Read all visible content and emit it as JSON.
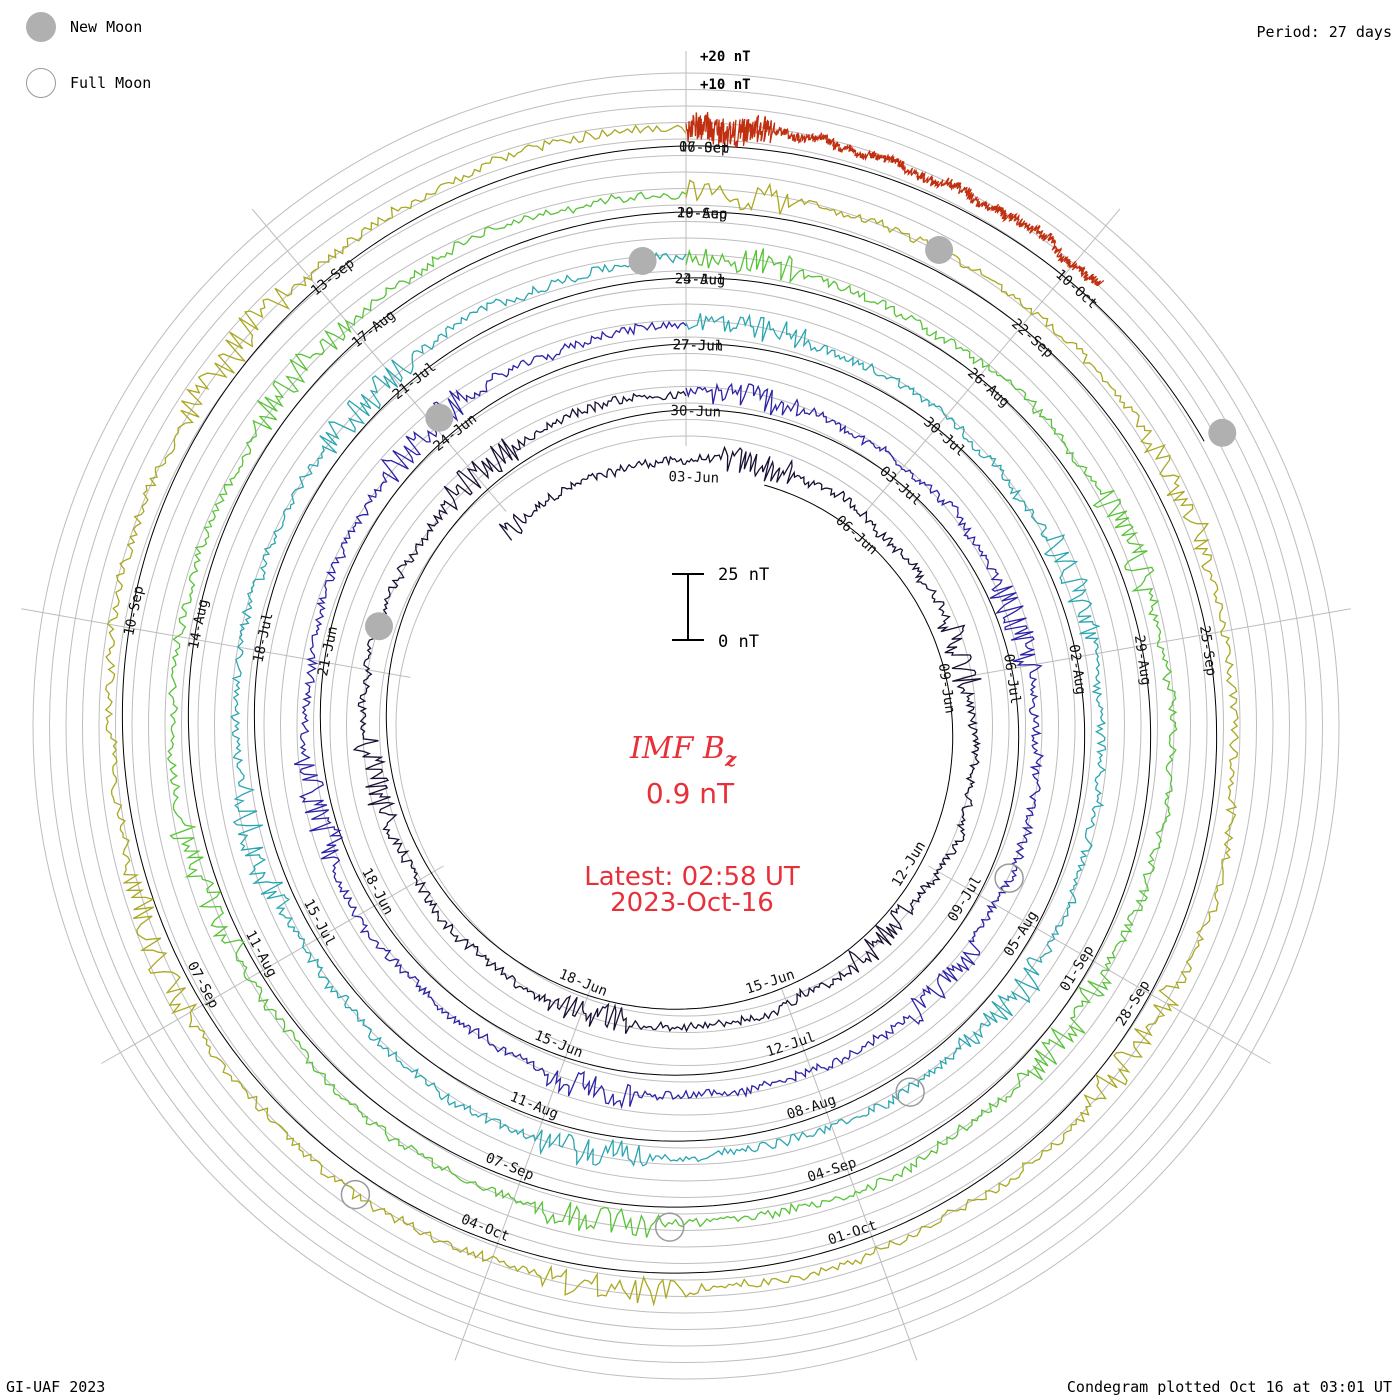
{
  "legend": {
    "new_moon": "New Moon",
    "full_moon": "Full Moon",
    "new_moon_color": "#b0b0b0",
    "full_moon_border": "#9a9a9a"
  },
  "header": {
    "period": "Period: 27 days"
  },
  "footer": {
    "credit": "GI-UAF 2023",
    "plotted": "Condegram plotted Oct 16 at 03:01 UT"
  },
  "chart_data": {
    "type": "line",
    "quantity": "IMF Bz",
    "title_main": "IMF B",
    "title_sub": "z",
    "current_value": "0.9 nT",
    "latest_line": "Latest: 02:58 UT",
    "latest_date": "2023-Oct-16",
    "scale_labels": [
      "+20 nT",
      "+10 nT"
    ],
    "scale_bar": {
      "top": "25 nT",
      "bottom": "0 nT"
    },
    "period_days": 27,
    "rings": [
      {
        "color": "#1a0f33",
        "dates": [
          "03-Jun",
          "06-Jun",
          "09-Jun",
          "12-Jun",
          "15-Jun",
          "18-Jun"
        ]
      },
      {
        "color": "#2c22a6",
        "dates": [
          "30-Jun",
          "03-Jul",
          "06-Jul",
          "09-Jul",
          "12-Jul",
          "15-Jun",
          "18-Jun",
          "21-Jun",
          "24-Jun",
          "27-Jun"
        ]
      },
      {
        "color": "#2aa6b0",
        "dates": [
          "27-Jul",
          "30-Jul",
          "02-Aug",
          "05-Aug",
          "08-Aug",
          "11-Aug",
          "15-Jul",
          "18-Jul",
          "21-Jul",
          "24-Jul"
        ]
      },
      {
        "color": "#58c238",
        "dates": [
          "23-Aug",
          "26-Aug",
          "29-Aug",
          "01-Sep",
          "04-Sep",
          "07-Sep",
          "11-Aug",
          "14-Aug",
          "17-Aug",
          "20-Aug"
        ]
      },
      {
        "color": "#aaa820",
        "dates": [
          "19-Sep",
          "22-Sep",
          "25-Sep",
          "28-Sep",
          "01-Oct",
          "04-Oct",
          "07-Sep",
          "10-Sep",
          "13-Sep",
          "16-Sep"
        ]
      },
      {
        "color": "#c03010",
        "dates": [
          "07-Oct",
          "10-Oct"
        ]
      }
    ],
    "new_moon_markers": 5,
    "full_moon_markers": 4
  }
}
